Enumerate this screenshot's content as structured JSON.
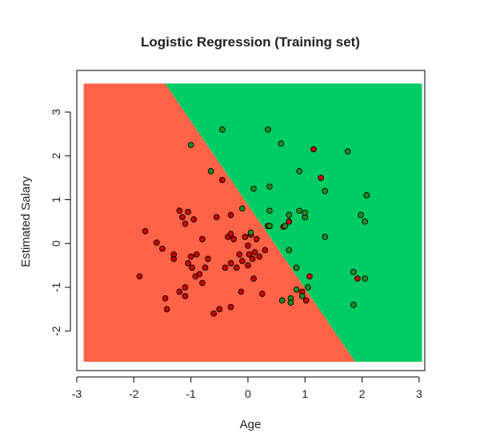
{
  "chart_data": {
    "type": "scatter",
    "title": "Logistic Regression (Training set)",
    "xlabel": "Age",
    "ylabel": "Estimated Salary",
    "xlim": [
      -3.0,
      3.1
    ],
    "ylim": [
      -2.9,
      3.95
    ],
    "x_ticks": [
      -3,
      -2,
      -1,
      0,
      1,
      2,
      3
    ],
    "y_ticks": [
      -2,
      -1,
      0,
      1,
      2,
      3
    ],
    "grid": false,
    "legend": "none",
    "colors": {
      "region_class0": "#FF6347",
      "region_class1": "#00CC66",
      "point_class0": "#CC0000",
      "point_class1": "#228B22",
      "point_outline": "#000000"
    },
    "regions": {
      "x_range": [
        -2.88,
        3.05
      ],
      "y_range": [
        -2.7,
        3.65
      ],
      "boundary": [
        [
          -1.45,
          3.65
        ],
        [
          1.88,
          -2.7
        ]
      ],
      "left_class": 0,
      "right_class": 1
    },
    "series": [
      {
        "class": 0,
        "points": [
          [
            -1.9,
            -0.75
          ],
          [
            -1.8,
            0.28
          ],
          [
            -1.6,
            0.02
          ],
          [
            -1.5,
            -0.12
          ],
          [
            -1.45,
            -1.25
          ],
          [
            -1.42,
            -1.5
          ],
          [
            -1.3,
            -0.35
          ],
          [
            -1.3,
            -0.25
          ],
          [
            -1.2,
            -1.1
          ],
          [
            -1.2,
            0.75
          ],
          [
            -1.15,
            0.6
          ],
          [
            -1.1,
            -1.0
          ],
          [
            -1.1,
            -1.2
          ],
          [
            -1.1,
            0.45
          ],
          [
            -1.05,
            0.72
          ],
          [
            -1.05,
            -0.45
          ],
          [
            -1.0,
            -0.3
          ],
          [
            -0.98,
            -0.55
          ],
          [
            -0.95,
            0.55
          ],
          [
            -0.92,
            -0.75
          ],
          [
            -0.9,
            -0.25
          ],
          [
            -0.85,
            -0.7
          ],
          [
            -0.8,
            0.1
          ],
          [
            -0.8,
            -0.9
          ],
          [
            -0.75,
            -0.55
          ],
          [
            -0.7,
            -0.35
          ],
          [
            -0.6,
            -1.6
          ],
          [
            -0.55,
            0.6
          ],
          [
            -0.5,
            -1.5
          ],
          [
            -0.45,
            1.45
          ],
          [
            -0.4,
            -0.55
          ],
          [
            -0.35,
            0.15
          ],
          [
            -0.3,
            0.22
          ],
          [
            -0.3,
            0.65
          ],
          [
            -0.3,
            -0.45
          ],
          [
            -0.3,
            -1.45
          ],
          [
            -0.25,
            0.1
          ],
          [
            -0.2,
            -0.55
          ],
          [
            -0.15,
            -0.25
          ],
          [
            -0.12,
            -1.1
          ],
          [
            -0.1,
            -0.4
          ],
          [
            -0.05,
            0.15
          ],
          [
            0.0,
            -0.5
          ],
          [
            0.0,
            -0.05
          ],
          [
            0.02,
            -0.25
          ],
          [
            0.05,
            0.2
          ],
          [
            0.08,
            -0.35
          ],
          [
            0.1,
            -0.8
          ],
          [
            0.12,
            -0.2
          ],
          [
            0.15,
            0.1
          ],
          [
            0.2,
            -0.3
          ],
          [
            0.25,
            -1.15
          ],
          [
            0.3,
            -0.15
          ],
          [
            0.35,
            0.4
          ],
          [
            0.62,
            0.38
          ],
          [
            0.72,
            0.5
          ],
          [
            0.95,
            -1.1
          ],
          [
            1.02,
            -1.3
          ],
          [
            1.08,
            -0.75
          ],
          [
            1.15,
            2.15
          ],
          [
            1.28,
            1.5
          ],
          [
            1.92,
            -0.8
          ]
        ]
      },
      {
        "class": 1,
        "points": [
          [
            -1.0,
            2.25
          ],
          [
            -0.65,
            1.65
          ],
          [
            -0.45,
            2.6
          ],
          [
            -0.1,
            0.8
          ],
          [
            0.05,
            0.25
          ],
          [
            0.1,
            1.25
          ],
          [
            0.35,
            2.6
          ],
          [
            0.38,
            1.3
          ],
          [
            0.38,
            0.75
          ],
          [
            0.38,
            0.4
          ],
          [
            0.58,
            2.28
          ],
          [
            0.65,
            0.4
          ],
          [
            0.72,
            0.65
          ],
          [
            0.75,
            -1.25
          ],
          [
            0.85,
            -0.55
          ],
          [
            0.85,
            -1.05
          ],
          [
            0.9,
            1.65
          ],
          [
            0.9,
            0.75
          ],
          [
            0.95,
            -1.2
          ],
          [
            1.0,
            0.6
          ],
          [
            1.0,
            0.7
          ],
          [
            1.05,
            -1.0
          ],
          [
            1.35,
            1.2
          ],
          [
            1.35,
            0.15
          ],
          [
            1.75,
            2.1
          ],
          [
            1.85,
            -0.65
          ],
          [
            1.85,
            -1.4
          ],
          [
            1.98,
            0.65
          ],
          [
            2.05,
            0.5
          ],
          [
            2.05,
            -0.8
          ],
          [
            2.08,
            1.1
          ],
          [
            0.72,
            -0.15
          ],
          [
            0.75,
            -1.35
          ],
          [
            0.6,
            -1.3
          ]
        ]
      }
    ]
  }
}
